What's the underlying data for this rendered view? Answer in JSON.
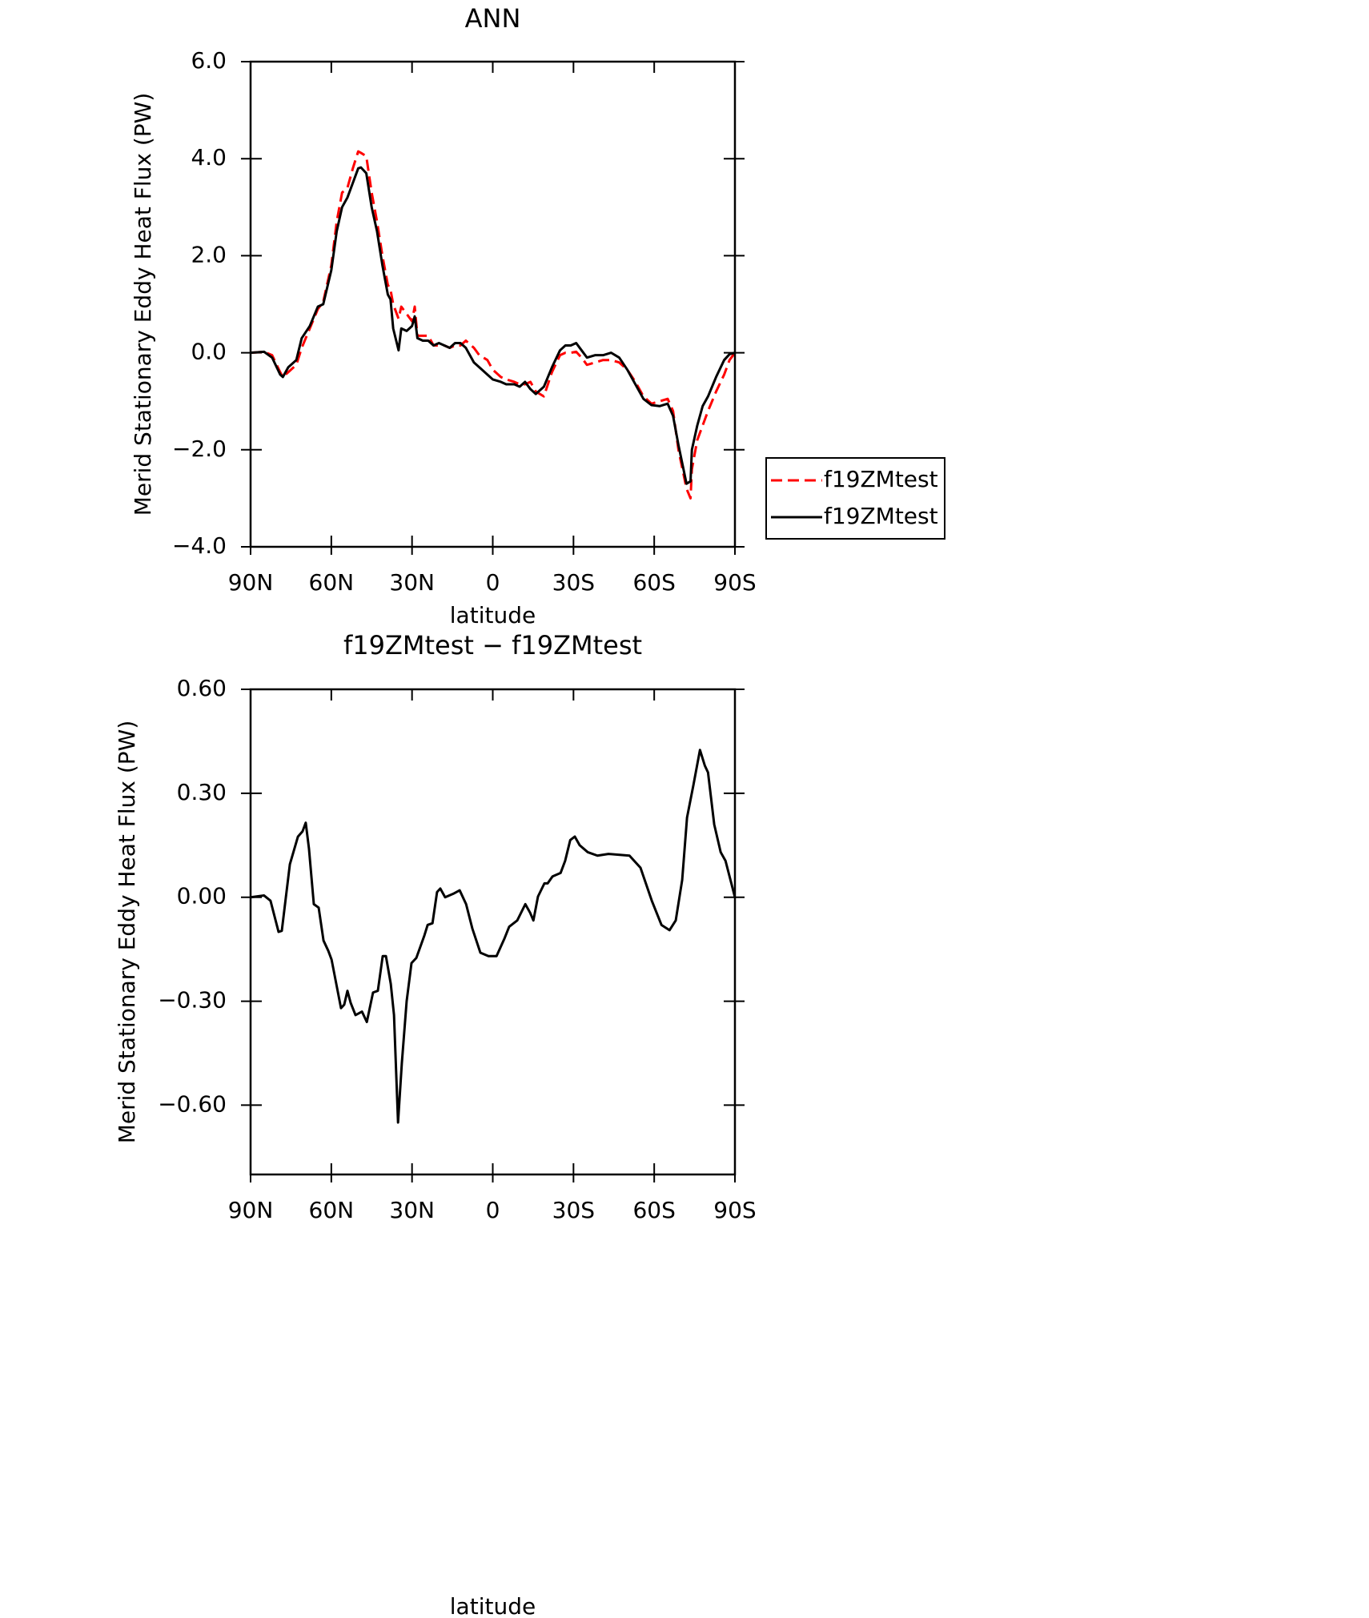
{
  "chart_data": [
    {
      "type": "line",
      "title": "ANN",
      "x_label": "latitude",
      "y_label": "Merid Stationary Eddy Heat Flux (PW)",
      "xlim": [
        90,
        -90
      ],
      "xticks": [
        {
          "value": 90,
          "label": "90N"
        },
        {
          "value": 60,
          "label": "60N"
        },
        {
          "value": 30,
          "label": "30N"
        },
        0,
        {
          "value": -30,
          "label": "30S"
        },
        {
          "value": -60,
          "label": "60S"
        },
        {
          "value": -90,
          "label": "90S"
        }
      ],
      "ylim": [
        -4,
        6
      ],
      "yticks": [
        {
          "value": -4,
          "label": "−4.0"
        },
        {
          "value": -2,
          "label": "−2.0"
        },
        {
          "value": 0,
          "label": "0.0"
        },
        {
          "value": 2,
          "label": "2.0"
        },
        {
          "value": 4,
          "label": "4.0"
        },
        {
          "value": 6,
          "label": "6.0"
        }
      ],
      "legend": "right",
      "x": [
        90,
        85,
        82,
        79,
        78,
        76,
        73,
        71,
        68,
        65,
        63,
        60,
        58,
        56,
        54,
        52,
        50,
        49,
        47,
        45,
        43,
        41,
        39,
        38,
        37,
        35,
        34,
        32,
        30,
        29,
        28,
        26,
        24,
        22,
        20,
        18,
        16,
        14,
        12,
        10,
        7,
        5,
        2,
        0,
        -3,
        -5,
        -8,
        -10,
        -12,
        -14,
        -16,
        -19,
        -22,
        -25,
        -27,
        -29,
        -31,
        -33,
        -35,
        -38,
        -41,
        -44,
        -47,
        -50,
        -53,
        -56,
        -59,
        -62,
        -65,
        -67,
        -69,
        -72,
        -73.5,
        -74,
        -76,
        -78,
        -80,
        -83,
        -86,
        -88,
        -90
      ],
      "series": [
        {
          "name": "f19ZMtest",
          "color": "#ff0000",
          "linestyle": "dashed",
          "values": [
            0,
            0.02,
            -0.05,
            -0.4,
            -0.5,
            -0.4,
            -0.25,
            0.1,
            0.5,
            0.9,
            1.05,
            1.8,
            2.7,
            3.3,
            3.4,
            3.8,
            4.15,
            4.12,
            4.05,
            3.3,
            2.7,
            2.0,
            1.4,
            1.3,
            1.0,
            0.7,
            0.95,
            0.8,
            0.65,
            0.95,
            0.35,
            0.35,
            0.35,
            0.15,
            0.15,
            0.15,
            0.1,
            0.15,
            0.15,
            0.25,
            0.1,
            -0.05,
            -0.15,
            -0.35,
            -0.5,
            -0.55,
            -0.6,
            -0.65,
            -0.65,
            -0.6,
            -0.8,
            -0.9,
            -0.4,
            -0.05,
            0.0,
            0.0,
            0.02,
            -0.1,
            -0.25,
            -0.2,
            -0.15,
            -0.15,
            -0.2,
            -0.35,
            -0.6,
            -0.9,
            -1.05,
            -1.0,
            -0.95,
            -1.2,
            -2.0,
            -2.8,
            -3.0,
            -2.4,
            -1.8,
            -1.5,
            -1.2,
            -0.8,
            -0.45,
            -0.15,
            0
          ]
        },
        {
          "name": "f19ZMtest",
          "color": "#000000",
          "linestyle": "solid",
          "values": [
            0,
            0.02,
            -0.1,
            -0.45,
            -0.5,
            -0.3,
            -0.15,
            0.3,
            0.55,
            0.95,
            1.0,
            1.7,
            2.5,
            3.0,
            3.2,
            3.5,
            3.8,
            3.82,
            3.7,
            3.0,
            2.5,
            1.8,
            1.2,
            1.1,
            0.5,
            0.05,
            0.5,
            0.45,
            0.55,
            0.75,
            0.3,
            0.25,
            0.25,
            0.15,
            0.2,
            0.15,
            0.1,
            0.2,
            0.2,
            0.1,
            -0.2,
            -0.3,
            -0.45,
            -0.55,
            -0.6,
            -0.65,
            -0.65,
            -0.7,
            -0.6,
            -0.75,
            -0.85,
            -0.7,
            -0.3,
            0.05,
            0.15,
            0.15,
            0.2,
            0.05,
            -0.1,
            -0.05,
            -0.05,
            0,
            -0.1,
            -0.35,
            -0.65,
            -0.95,
            -1.08,
            -1.1,
            -1.05,
            -1.3,
            -1.9,
            -2.7,
            -2.65,
            -2.0,
            -1.5,
            -1.1,
            -0.9,
            -0.5,
            -0.15,
            -0.03,
            0
          ]
        }
      ]
    },
    {
      "type": "line",
      "title": "f19ZMtest − f19ZMtest",
      "x_label": "latitude",
      "y_label": "Merid Stationary Eddy Heat Flux (PW)",
      "xlim": [
        90,
        -90
      ],
      "xticks": [
        {
          "value": 90,
          "label": "90N"
        },
        {
          "value": 60,
          "label": "60N"
        },
        {
          "value": 30,
          "label": "30N"
        },
        0,
        {
          "value": -30,
          "label": "30S"
        },
        {
          "value": -60,
          "label": "60S"
        },
        {
          "value": -90,
          "label": "90S"
        }
      ],
      "ylim": [
        -0.8,
        0.6
      ],
      "yticks": [
        {
          "value": -0.6,
          "label": "−0.60"
        },
        {
          "value": -0.3,
          "label": "−0.30"
        },
        {
          "value": 0,
          "label": "0.00"
        },
        {
          "value": 0.3,
          "label": "0.30"
        },
        {
          "value": 0.6,
          "label": "0.60"
        }
      ],
      "x": [
        90,
        85,
        82.6,
        79.6,
        78.4,
        75.4,
        72.4,
        70.7,
        69.5,
        68.3,
        66.5,
        64.7,
        62.9,
        61.1,
        59.9,
        56.4,
        55.2,
        54,
        52.8,
        51,
        48.6,
        46.8,
        44.5,
        42.7,
        40.9,
        39.7,
        37.9,
        36.7,
        35.2,
        33.8,
        32,
        30.2,
        28.4,
        25.4,
        24.2,
        22.4,
        20.7,
        19.5,
        17.7,
        14.7,
        12.3,
        9.9,
        7.6,
        4.6,
        1.6,
        -1.4,
        -4.3,
        -6.1,
        -9.1,
        -12.1,
        -13.9,
        -15.1,
        -16.8,
        -19.2,
        -20.4,
        -22.2,
        -25.2,
        -26.9,
        -28.8,
        -30.5,
        -32.3,
        -35.3,
        -38.9,
        -43,
        -50.8,
        -54.9,
        -59.1,
        -62.7,
        -65.7,
        -68,
        -70.4,
        -72.2,
        -74.6,
        -77,
        -78.8,
        -80,
        -82.3,
        -84.7,
        -86.5,
        -90
      ],
      "series": [
        {
          "color": "#000000",
          "linestyle": "solid",
          "values": [
            0,
            0.005,
            -0.01,
            -0.1,
            -0.097,
            0.095,
            0.175,
            0.19,
            0.215,
            0.14,
            -0.02,
            -0.03,
            -0.125,
            -0.155,
            -0.18,
            -0.32,
            -0.31,
            -0.27,
            -0.305,
            -0.34,
            -0.33,
            -0.36,
            -0.275,
            -0.27,
            -0.17,
            -0.17,
            -0.25,
            -0.34,
            -0.65,
            -0.48,
            -0.3,
            -0.19,
            -0.175,
            -0.11,
            -0.08,
            -0.075,
            0.015,
            0.025,
            0,
            0.01,
            0.02,
            -0.02,
            -0.09,
            -0.16,
            -0.17,
            -0.17,
            -0.12,
            -0.085,
            -0.067,
            -0.02,
            -0.045,
            -0.067,
            0.002,
            0.04,
            0.04,
            0.06,
            0.07,
            0.105,
            0.165,
            0.175,
            0.15,
            0.13,
            0.12,
            0.125,
            0.12,
            0.085,
            -0.01,
            -0.08,
            -0.095,
            -0.067,
            0.05,
            0.23,
            0.325,
            0.425,
            0.38,
            0.36,
            0.21,
            0.13,
            0.105,
            0
          ]
        }
      ]
    }
  ]
}
